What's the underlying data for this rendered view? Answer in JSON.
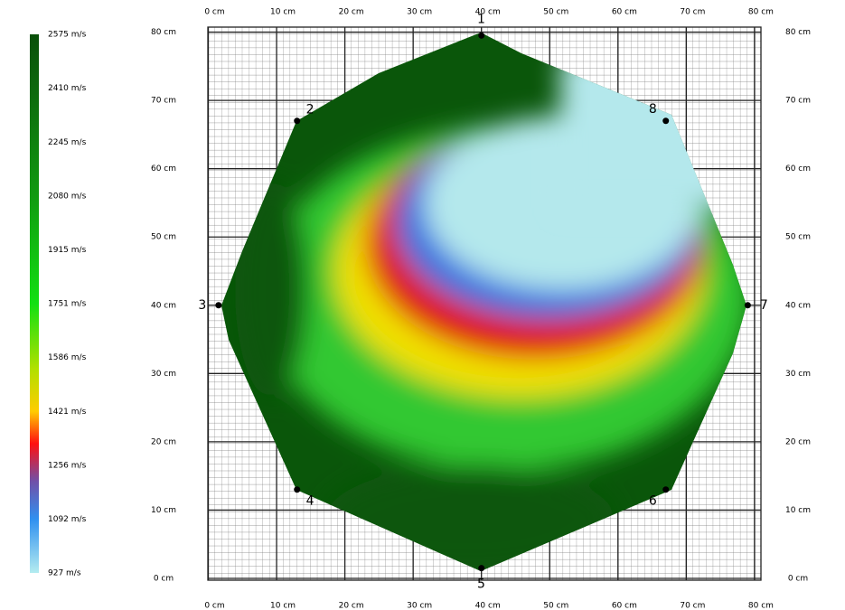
{
  "chart_data": {
    "type": "tomogram",
    "colorbar": {
      "ticks": [
        {
          "value": 2575,
          "label": "2575 m/s"
        },
        {
          "value": 2410,
          "label": "2410 m/s"
        },
        {
          "value": 2245,
          "label": "2245 m/s"
        },
        {
          "value": 2080,
          "label": "2080 m/s"
        },
        {
          "value": 1915,
          "label": "1915 m/s"
        },
        {
          "value": 1751,
          "label": "1751 m/s"
        },
        {
          "value": 1586,
          "label": "1586 m/s"
        },
        {
          "value": 1421,
          "label": "1421 m/s"
        },
        {
          "value": 1256,
          "label": "1256 m/s"
        },
        {
          "value": 1092,
          "label": "1092 m/s"
        },
        {
          "value": 927,
          "label": "927 m/s"
        }
      ]
    },
    "xlim": [
      0,
      81
    ],
    "ylim": [
      0,
      81
    ],
    "xticks": [
      {
        "value": 0,
        "label": "0 cm"
      },
      {
        "value": 10,
        "label": "10 cm"
      },
      {
        "value": 20,
        "label": "20 cm"
      },
      {
        "value": 30,
        "label": "30 cm"
      },
      {
        "value": 40,
        "label": "40 cm"
      },
      {
        "value": 50,
        "label": "50 cm"
      },
      {
        "value": 60,
        "label": "60 cm"
      },
      {
        "value": 70,
        "label": "70 cm"
      },
      {
        "value": 80,
        "label": "80 cm"
      }
    ],
    "yticks": [
      {
        "value": 0,
        "label": "0 cm"
      },
      {
        "value": 10,
        "label": "10 cm"
      },
      {
        "value": 20,
        "label": "20 cm"
      },
      {
        "value": 30,
        "label": "30 cm"
      },
      {
        "value": 40,
        "label": "40 cm"
      },
      {
        "value": 50,
        "label": "50 cm"
      },
      {
        "value": 60,
        "label": "60 cm"
      },
      {
        "value": 70,
        "label": "70 cm"
      },
      {
        "value": 80,
        "label": "80 cm"
      }
    ],
    "grid": true,
    "sensors": {
      "labels": [
        "1",
        "2",
        "3",
        "4",
        "5",
        "6",
        "7",
        "8"
      ],
      "x": [
        40,
        13,
        1.5,
        13,
        40,
        67,
        79,
        67
      ],
      "y": [
        79.5,
        67,
        40,
        13,
        1.5,
        13,
        40,
        67
      ]
    }
  }
}
